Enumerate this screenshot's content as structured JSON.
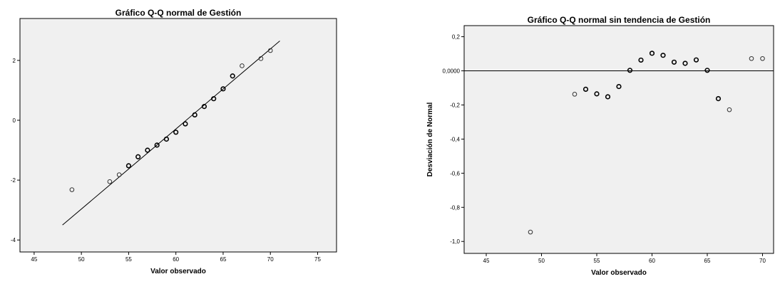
{
  "chart_data": [
    {
      "type": "scatter",
      "title": "Gráfico Q-Q normal de Gestión",
      "xlabel": "Valor observado",
      "ylabel": "",
      "xlim": [
        43.5,
        77
      ],
      "ylim": [
        -4.4,
        3.4
      ],
      "x_ticks": [
        {
          "value": 45,
          "label": "45"
        },
        {
          "value": 50,
          "label": "50"
        },
        {
          "value": 55,
          "label": "55"
        },
        {
          "value": 60,
          "label": "60"
        },
        {
          "value": 65,
          "label": "65"
        },
        {
          "value": 70,
          "label": "70"
        },
        {
          "value": 75,
          "label": "75"
        }
      ],
      "y_ticks": [
        {
          "value": -4,
          "label": "-4"
        },
        {
          "value": -2,
          "label": "-2"
        },
        {
          "value": 0,
          "label": "0"
        },
        {
          "value": 2,
          "label": "2"
        }
      ],
      "grid": false,
      "reference_line": {
        "x": [
          48,
          71
        ],
        "y": [
          -3.5,
          2.65
        ]
      },
      "points": [
        {
          "x": 49,
          "y": -2.32,
          "bold": false
        },
        {
          "x": 53,
          "y": -2.05,
          "bold": false
        },
        {
          "x": 54,
          "y": -1.82,
          "bold": false
        },
        {
          "x": 55,
          "y": -1.52,
          "bold": true
        },
        {
          "x": 56,
          "y": -1.22,
          "bold": true
        },
        {
          "x": 57,
          "y": -1.0,
          "bold": true
        },
        {
          "x": 58,
          "y": -0.83,
          "bold": true
        },
        {
          "x": 59,
          "y": -0.63,
          "bold": true
        },
        {
          "x": 60,
          "y": -0.4,
          "bold": true
        },
        {
          "x": 61,
          "y": -0.12,
          "bold": true
        },
        {
          "x": 62,
          "y": 0.18,
          "bold": true
        },
        {
          "x": 63,
          "y": 0.46,
          "bold": true
        },
        {
          "x": 64,
          "y": 0.72,
          "bold": true
        },
        {
          "x": 65,
          "y": 1.05,
          "bold": true
        },
        {
          "x": 66,
          "y": 1.48,
          "bold": true
        },
        {
          "x": 67,
          "y": 1.82,
          "bold": false
        },
        {
          "x": 69,
          "y": 2.06,
          "bold": false
        },
        {
          "x": 70,
          "y": 2.33,
          "bold": false
        }
      ]
    },
    {
      "type": "scatter",
      "title": "Gráfico Q-Q normal sin tendencia de Gestión",
      "xlabel": "Valor observado",
      "ylabel": "Desviación de Normal",
      "xlim": [
        43,
        71
      ],
      "ylim": [
        -1.07,
        0.265
      ],
      "x_ticks": [
        {
          "value": 45,
          "label": "45"
        },
        {
          "value": 50,
          "label": "50"
        },
        {
          "value": 55,
          "label": "55"
        },
        {
          "value": 60,
          "label": "60"
        },
        {
          "value": 65,
          "label": "65"
        },
        {
          "value": 70,
          "label": "70"
        }
      ],
      "y_ticks": [
        {
          "value": -1.0,
          "label": "-1,0"
        },
        {
          "value": -0.8,
          "label": "-0,8"
        },
        {
          "value": -0.6,
          "label": "-0,6"
        },
        {
          "value": -0.4,
          "label": "-0,4"
        },
        {
          "value": -0.2,
          "label": "-0,2"
        },
        {
          "value": 0.0,
          "label": "0,0000"
        },
        {
          "value": 0.2,
          "label": "0,2"
        }
      ],
      "grid": false,
      "reference_line": {
        "y": 0
      },
      "points": [
        {
          "x": 49,
          "y": -0.945,
          "bold": false
        },
        {
          "x": 53,
          "y": -0.137,
          "bold": false
        },
        {
          "x": 54,
          "y": -0.108,
          "bold": true
        },
        {
          "x": 55,
          "y": -0.135,
          "bold": true
        },
        {
          "x": 56,
          "y": -0.152,
          "bold": true
        },
        {
          "x": 57,
          "y": -0.092,
          "bold": true
        },
        {
          "x": 58,
          "y": 0.003,
          "bold": true
        },
        {
          "x": 59,
          "y": 0.063,
          "bold": true
        },
        {
          "x": 60,
          "y": 0.103,
          "bold": true
        },
        {
          "x": 61,
          "y": 0.091,
          "bold": true
        },
        {
          "x": 62,
          "y": 0.051,
          "bold": true
        },
        {
          "x": 63,
          "y": 0.044,
          "bold": true
        },
        {
          "x": 64,
          "y": 0.064,
          "bold": true
        },
        {
          "x": 65,
          "y": 0.003,
          "bold": true
        },
        {
          "x": 66,
          "y": -0.163,
          "bold": true
        },
        {
          "x": 67,
          "y": -0.228,
          "bold": false
        },
        {
          "x": 69,
          "y": 0.072,
          "bold": false
        },
        {
          "x": 70,
          "y": 0.072,
          "bold": false
        }
      ]
    }
  ]
}
